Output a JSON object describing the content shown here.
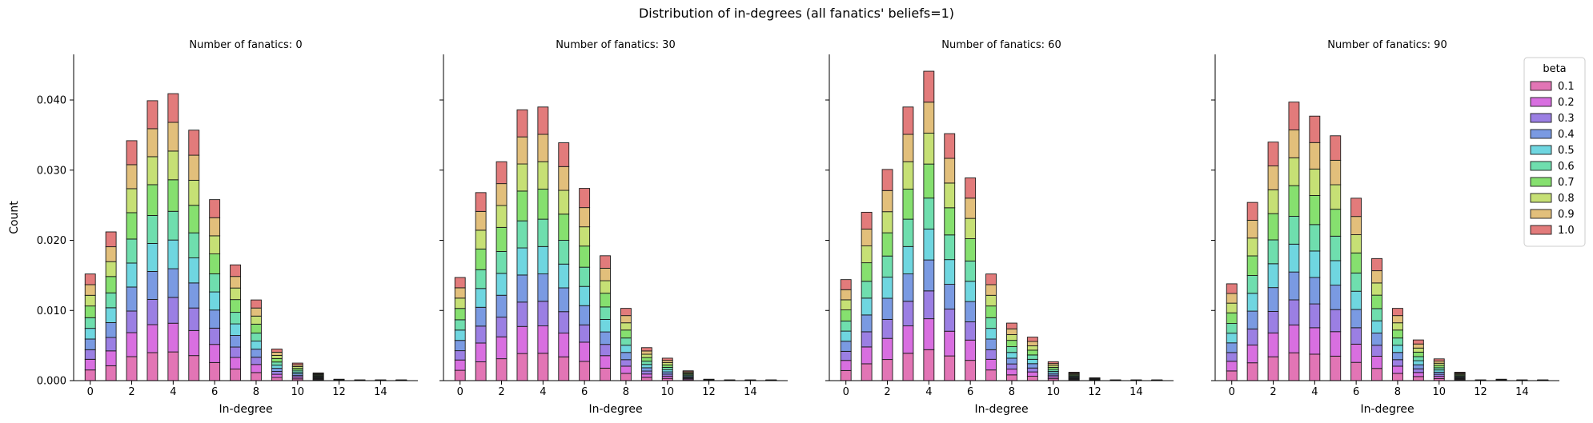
{
  "figure": {
    "suptitle": "Distribution of in-degrees (all fanatics' beliefs=1)"
  },
  "chart_data": {
    "type": "bar",
    "stacked": true,
    "xlabel": "In-degree",
    "ylabel": "Count",
    "xlim": [
      -0.8,
      15.8
    ],
    "ylim": [
      0,
      0.0465
    ],
    "xticks": [
      "0",
      "2",
      "4",
      "6",
      "8",
      "10",
      "12",
      "14"
    ],
    "yticks": [
      "0.000",
      "0.010",
      "0.020",
      "0.030",
      "0.040"
    ],
    "legend": {
      "title": "beta",
      "placement": "top-right of last panel",
      "entries": [
        "0.1",
        "0.2",
        "0.3",
        "0.4",
        "0.5",
        "0.6",
        "0.7",
        "0.8",
        "0.9",
        "1.0"
      ]
    },
    "colors": [
      "#e275b5",
      "#d86fe0",
      "#9b7fe3",
      "#7a9ae2",
      "#6fd6e0",
      "#6fdeae",
      "#86e06f",
      "#c6e075",
      "#e2bf7b",
      "#e27b7b"
    ],
    "panels": [
      {
        "title": "Number of fanatics: 0",
        "totals": [
          0.0152,
          0.0212,
          0.0342,
          0.0399,
          0.0409,
          0.0357,
          0.0258,
          0.0165,
          0.0115,
          0.0045,
          0.0025,
          0.0011,
          0.0002,
          0.0001,
          0.0001,
          0.0001
        ]
      },
      {
        "title": "Number of fanatics: 30",
        "totals": [
          0.0147,
          0.0268,
          0.0312,
          0.0386,
          0.039,
          0.0339,
          0.0274,
          0.0178,
          0.0103,
          0.0047,
          0.0032,
          0.0014,
          0.0002,
          0.0001,
          0.0001,
          0.0001
        ]
      },
      {
        "title": "Number of fanatics: 60",
        "totals": [
          0.0144,
          0.024,
          0.0301,
          0.039,
          0.0441,
          0.0352,
          0.0289,
          0.0152,
          0.0082,
          0.0062,
          0.0027,
          0.0012,
          0.0004,
          0.0001,
          0.0001,
          0.0001
        ]
      },
      {
        "title": "Number of fanatics: 90",
        "totals": [
          0.0138,
          0.0254,
          0.034,
          0.0397,
          0.0377,
          0.0349,
          0.026,
          0.0174,
          0.0103,
          0.0058,
          0.0031,
          0.0012,
          0.0001,
          0.0002,
          0.0001,
          0.0001
        ]
      }
    ]
  }
}
